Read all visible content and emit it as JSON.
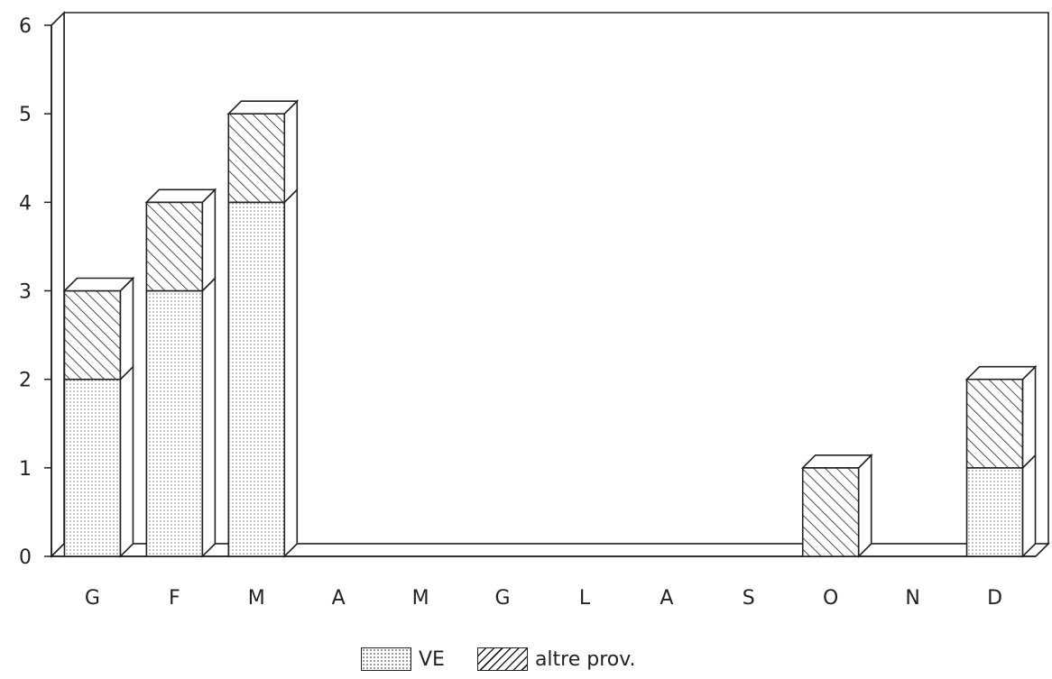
{
  "chart_data": {
    "type": "bar",
    "stacked": true,
    "style": "3d",
    "categories": [
      "G",
      "F",
      "M",
      "A",
      "M",
      "G",
      "L",
      "A",
      "S",
      "O",
      "N",
      "D"
    ],
    "series": [
      {
        "name": "VE",
        "pattern": "dots",
        "values": [
          2,
          3,
          4,
          0,
          0,
          0,
          0,
          0,
          0,
          0,
          0,
          1
        ]
      },
      {
        "name": "altre prov.",
        "pattern": "hatch",
        "values": [
          1,
          1,
          1,
          0,
          0,
          0,
          0,
          0,
          0,
          1,
          0,
          1
        ]
      }
    ],
    "title": "",
    "xlabel": "",
    "ylabel": "",
    "ylim": [
      0,
      6
    ],
    "yticks": [
      "0",
      "1",
      "2",
      "3",
      "4",
      "5",
      "6"
    ],
    "grid": false,
    "legend_position": "bottom-center",
    "colors": {
      "ink": "#222222",
      "fill": "#ffffff",
      "dots": "#777777"
    }
  }
}
